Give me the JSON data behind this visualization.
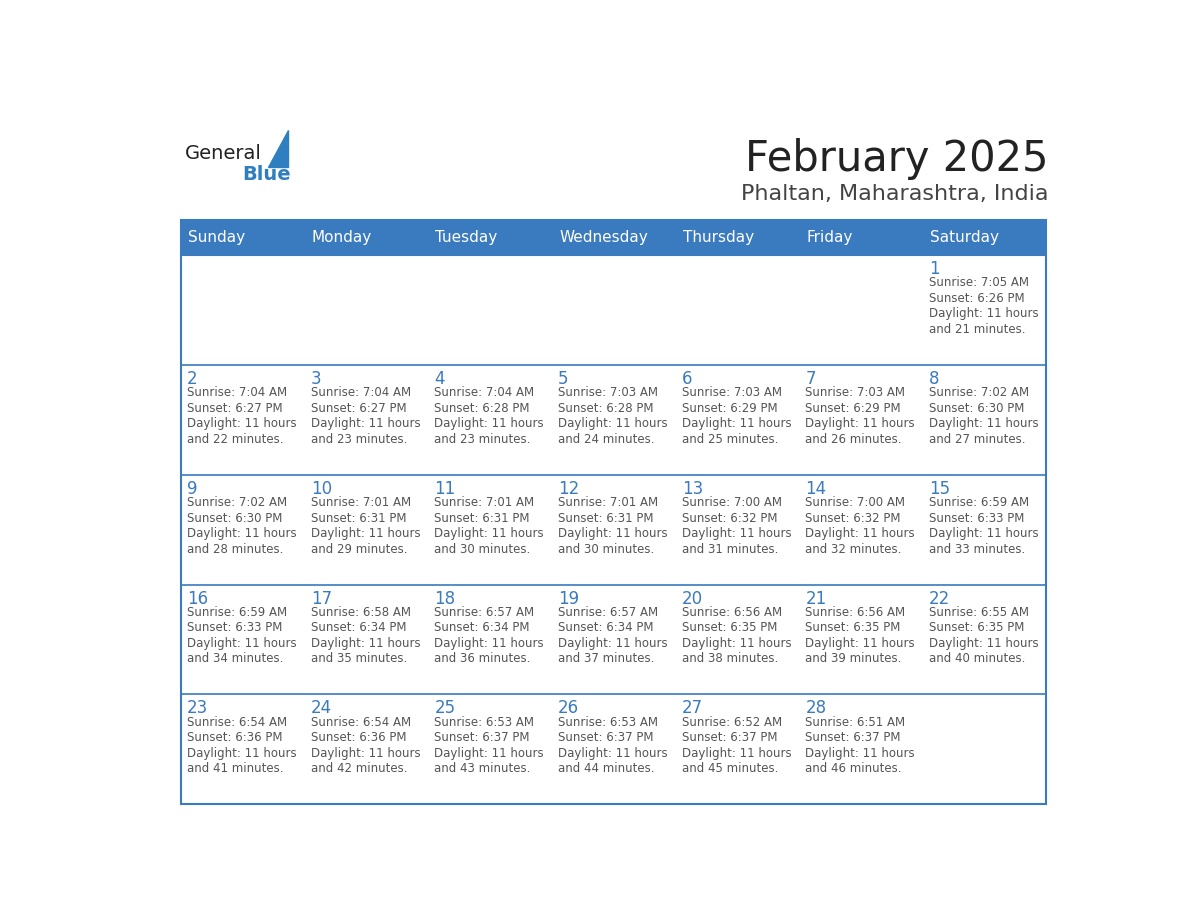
{
  "title": "February 2025",
  "subtitle": "Phaltan, Maharashtra, India",
  "days_of_week": [
    "Sunday",
    "Monday",
    "Tuesday",
    "Wednesday",
    "Thursday",
    "Friday",
    "Saturday"
  ],
  "header_bg_color": "#3a7abf",
  "header_text_color": "#ffffff",
  "cell_bg_color": "#ffffff",
  "cell_border_color": "#3a7abf",
  "day_number_color": "#3a7abf",
  "info_text_color": "#555555",
  "bg_color": "#ffffff",
  "title_color": "#222222",
  "subtitle_color": "#444444",
  "logo_general_color": "#222222",
  "logo_blue_color": "#2e7ec0",
  "weeks": [
    [
      null,
      null,
      null,
      null,
      null,
      null,
      1
    ],
    [
      2,
      3,
      4,
      5,
      6,
      7,
      8
    ],
    [
      9,
      10,
      11,
      12,
      13,
      14,
      15
    ],
    [
      16,
      17,
      18,
      19,
      20,
      21,
      22
    ],
    [
      23,
      24,
      25,
      26,
      27,
      28,
      null
    ]
  ],
  "day_data": {
    "1": {
      "sunrise": "7:05 AM",
      "sunset": "6:26 PM",
      "daylight_hours": 11,
      "daylight_minutes": 21
    },
    "2": {
      "sunrise": "7:04 AM",
      "sunset": "6:27 PM",
      "daylight_hours": 11,
      "daylight_minutes": 22
    },
    "3": {
      "sunrise": "7:04 AM",
      "sunset": "6:27 PM",
      "daylight_hours": 11,
      "daylight_minutes": 23
    },
    "4": {
      "sunrise": "7:04 AM",
      "sunset": "6:28 PM",
      "daylight_hours": 11,
      "daylight_minutes": 23
    },
    "5": {
      "sunrise": "7:03 AM",
      "sunset": "6:28 PM",
      "daylight_hours": 11,
      "daylight_minutes": 24
    },
    "6": {
      "sunrise": "7:03 AM",
      "sunset": "6:29 PM",
      "daylight_hours": 11,
      "daylight_minutes": 25
    },
    "7": {
      "sunrise": "7:03 AM",
      "sunset": "6:29 PM",
      "daylight_hours": 11,
      "daylight_minutes": 26
    },
    "8": {
      "sunrise": "7:02 AM",
      "sunset": "6:30 PM",
      "daylight_hours": 11,
      "daylight_minutes": 27
    },
    "9": {
      "sunrise": "7:02 AM",
      "sunset": "6:30 PM",
      "daylight_hours": 11,
      "daylight_minutes": 28
    },
    "10": {
      "sunrise": "7:01 AM",
      "sunset": "6:31 PM",
      "daylight_hours": 11,
      "daylight_minutes": 29
    },
    "11": {
      "sunrise": "7:01 AM",
      "sunset": "6:31 PM",
      "daylight_hours": 11,
      "daylight_minutes": 30
    },
    "12": {
      "sunrise": "7:01 AM",
      "sunset": "6:31 PM",
      "daylight_hours": 11,
      "daylight_minutes": 30
    },
    "13": {
      "sunrise": "7:00 AM",
      "sunset": "6:32 PM",
      "daylight_hours": 11,
      "daylight_minutes": 31
    },
    "14": {
      "sunrise": "7:00 AM",
      "sunset": "6:32 PM",
      "daylight_hours": 11,
      "daylight_minutes": 32
    },
    "15": {
      "sunrise": "6:59 AM",
      "sunset": "6:33 PM",
      "daylight_hours": 11,
      "daylight_minutes": 33
    },
    "16": {
      "sunrise": "6:59 AM",
      "sunset": "6:33 PM",
      "daylight_hours": 11,
      "daylight_minutes": 34
    },
    "17": {
      "sunrise": "6:58 AM",
      "sunset": "6:34 PM",
      "daylight_hours": 11,
      "daylight_minutes": 35
    },
    "18": {
      "sunrise": "6:57 AM",
      "sunset": "6:34 PM",
      "daylight_hours": 11,
      "daylight_minutes": 36
    },
    "19": {
      "sunrise": "6:57 AM",
      "sunset": "6:34 PM",
      "daylight_hours": 11,
      "daylight_minutes": 37
    },
    "20": {
      "sunrise": "6:56 AM",
      "sunset": "6:35 PM",
      "daylight_hours": 11,
      "daylight_minutes": 38
    },
    "21": {
      "sunrise": "6:56 AM",
      "sunset": "6:35 PM",
      "daylight_hours": 11,
      "daylight_minutes": 39
    },
    "22": {
      "sunrise": "6:55 AM",
      "sunset": "6:35 PM",
      "daylight_hours": 11,
      "daylight_minutes": 40
    },
    "23": {
      "sunrise": "6:54 AM",
      "sunset": "6:36 PM",
      "daylight_hours": 11,
      "daylight_minutes": 41
    },
    "24": {
      "sunrise": "6:54 AM",
      "sunset": "6:36 PM",
      "daylight_hours": 11,
      "daylight_minutes": 42
    },
    "25": {
      "sunrise": "6:53 AM",
      "sunset": "6:37 PM",
      "daylight_hours": 11,
      "daylight_minutes": 43
    },
    "26": {
      "sunrise": "6:53 AM",
      "sunset": "6:37 PM",
      "daylight_hours": 11,
      "daylight_minutes": 44
    },
    "27": {
      "sunrise": "6:52 AM",
      "sunset": "6:37 PM",
      "daylight_hours": 11,
      "daylight_minutes": 45
    },
    "28": {
      "sunrise": "6:51 AM",
      "sunset": "6:37 PM",
      "daylight_hours": 11,
      "daylight_minutes": 46
    }
  }
}
